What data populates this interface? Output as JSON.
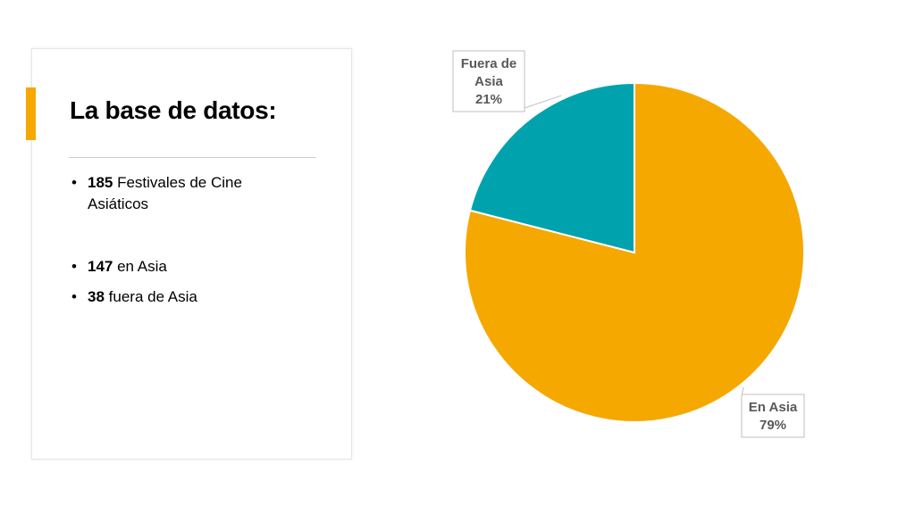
{
  "panel": {
    "title": "La base de datos:",
    "accent_color": "#F5A800",
    "items": [
      {
        "number": "185",
        "text": " Festivales de Cine Asiáticos"
      },
      {
        "number": "147",
        "text": " en Asia"
      },
      {
        "number": "38",
        "text": " fuera de Asia"
      }
    ]
  },
  "chart_data": {
    "type": "pie",
    "title": "",
    "slices": [
      {
        "label_lines": [
          "En Asia"
        ],
        "percent_label": "79%",
        "value": 79,
        "color": "#F5A800"
      },
      {
        "label_lines": [
          "Fuera de",
          "Asia"
        ],
        "percent_label": "21%",
        "value": 21,
        "color": "#00A3AD"
      }
    ],
    "start_angle_deg": 0,
    "direction": "clockwise"
  }
}
